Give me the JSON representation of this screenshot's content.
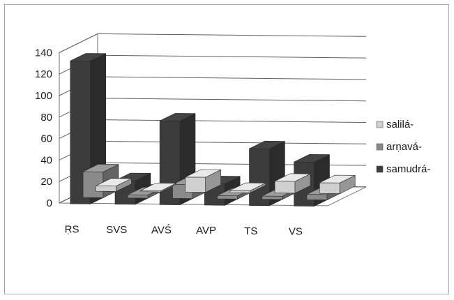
{
  "chart_data": {
    "type": "bar",
    "subtype": "3d-clustered-column",
    "title": "",
    "xlabel": "",
    "ylabel": "",
    "ylim": [
      0,
      140
    ],
    "yticks": [
      0,
      20,
      40,
      60,
      80,
      100,
      120,
      140
    ],
    "grid": true,
    "legend_position": "right",
    "categories": [
      "ṚS",
      "SVS",
      "AVŚ",
      "AVP",
      "TS",
      "VS"
    ],
    "series": [
      {
        "name": "salilá-",
        "color": "#d0d0d0",
        "values": [
          5,
          1,
          14,
          2,
          11,
          10
        ]
      },
      {
        "name": "arṇavá-",
        "color": "#8a8a8a",
        "values": [
          24,
          3,
          13,
          3,
          3,
          5
        ]
      },
      {
        "name": "samudrá-",
        "color": "#3c3c3c",
        "values": [
          133,
          22,
          78,
          20,
          53,
          41
        ]
      }
    ]
  }
}
